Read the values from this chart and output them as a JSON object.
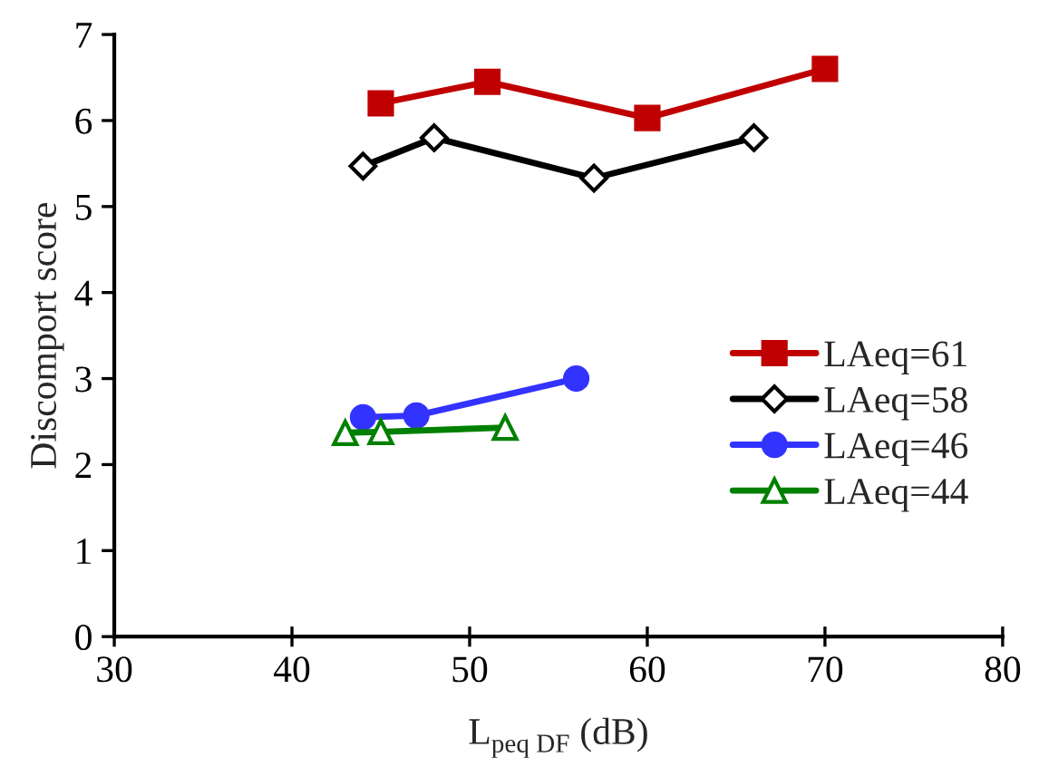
{
  "chart_data": {
    "type": "line",
    "xlabel": "L$_{peq DF}$ (dB)",
    "ylabel": "Discomport score",
    "xlim": [
      30,
      80
    ],
    "xticks": [
      30,
      40,
      50,
      60,
      70,
      80
    ],
    "ylim": [
      0,
      7
    ],
    "yticks": [
      0,
      1,
      2,
      3,
      4,
      5,
      6,
      7
    ],
    "grid": false,
    "legend": "right",
    "series": [
      {
        "name": "LAeq=61",
        "color": "#c00000",
        "marker": "square",
        "x": [
          45,
          51,
          60,
          70
        ],
        "values": [
          6.2,
          6.45,
          6.03,
          6.6
        ]
      },
      {
        "name": "LAeq=58",
        "color": "#000000",
        "marker": "diamond",
        "x": [
          44,
          48,
          57,
          66
        ],
        "values": [
          5.47,
          5.8,
          5.33,
          5.8
        ]
      },
      {
        "name": "LAeq=46",
        "color": "#3333ff",
        "marker": "circle",
        "x": [
          44,
          47,
          56
        ],
        "values": [
          2.55,
          2.57,
          3.0
        ]
      },
      {
        "name": "LAeq=44",
        "color": "#008000",
        "marker": "triangle",
        "x": [
          43,
          45,
          52
        ],
        "values": [
          2.37,
          2.38,
          2.43
        ]
      }
    ]
  }
}
